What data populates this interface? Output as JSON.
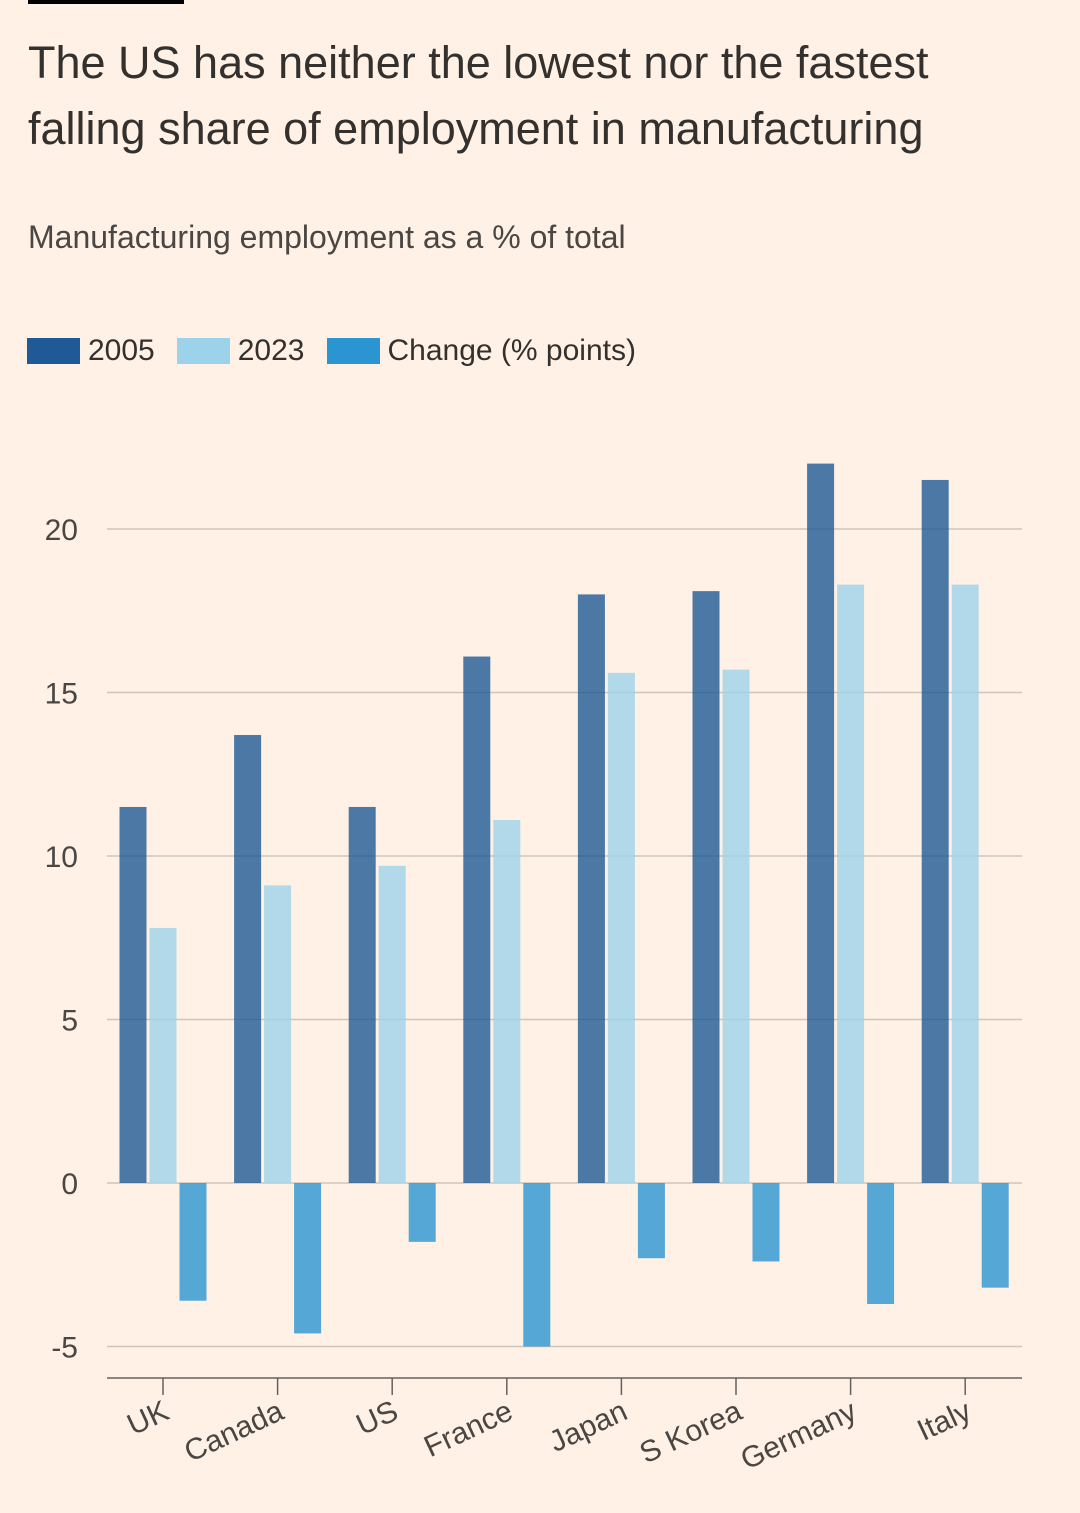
{
  "title": "The US has neither the lowest nor the fastest falling share of employment in manufacturing",
  "subtitle": "Manufacturing employment as a % of total",
  "colors": {
    "background": "#FFF1E5",
    "text": "#33302E",
    "grid": "#CEC6BE",
    "series_2005": "#1F5A96",
    "series_2023": "#9DD3EA",
    "series_change": "#2B95D2"
  },
  "legend": [
    {
      "label": "2005",
      "color": "#1F5A96"
    },
    {
      "label": "2023",
      "color": "#9DD3EA"
    },
    {
      "label": "Change (% points)",
      "color": "#2B95D2"
    }
  ],
  "chart_data": {
    "type": "bar",
    "categories": [
      "UK",
      "Canada",
      "US",
      "France",
      "Japan",
      "S Korea",
      "Germany",
      "Italy"
    ],
    "series": [
      {
        "name": "2005",
        "color": "#1F5A96",
        "values": [
          11.5,
          13.7,
          11.5,
          16.1,
          18.0,
          18.1,
          22.0,
          21.5
        ]
      },
      {
        "name": "2023",
        "color": "#9DD3EA",
        "values": [
          7.8,
          9.1,
          9.7,
          11.1,
          15.6,
          15.7,
          18.3,
          18.3
        ]
      },
      {
        "name": "Change (% points)",
        "color": "#2B95D2",
        "values": [
          -3.6,
          -4.6,
          -1.8,
          -5.0,
          -2.3,
          -2.4,
          -3.7,
          -3.2
        ]
      }
    ],
    "yticks": [
      -5,
      0,
      5,
      10,
      15,
      20
    ],
    "ylim": [
      -6,
      22.5
    ],
    "grid": true,
    "legend_position": "top-left",
    "xlabel": "",
    "ylabel": ""
  }
}
